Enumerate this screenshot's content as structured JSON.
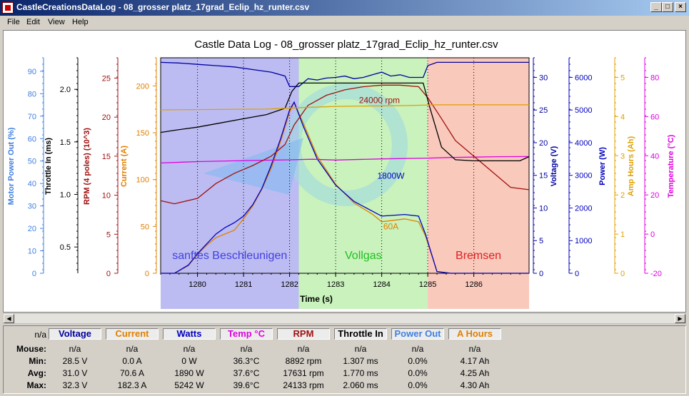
{
  "window": {
    "title": "CastleCreationsDataLog - 08_grosser platz_17grad_Eclip_hz_runter.csv"
  },
  "menu": [
    "File",
    "Edit",
    "View",
    "Help"
  ],
  "colors": {
    "voltage": "#0000a0",
    "current": "#e08000",
    "power": "#0000c0",
    "temp": "#e000e0",
    "rpm": "#a01010",
    "throttle": "#000000",
    "powerout": "#4080e0",
    "amphours": "#e0a000"
  },
  "chart_data": {
    "type": "line",
    "title": "Castle Data Log - 08_grosser platz_17grad_Eclip_hz_runter.csv",
    "xlabel": "Time (s)",
    "xlim": [
      1279.2,
      1287.2
    ],
    "xticks": [
      "1280",
      "1281",
      "1282",
      "1283",
      "1284",
      "1285",
      "1286"
    ],
    "axes": [
      {
        "label": "Motor Power Out (%)",
        "color": "#4080e0",
        "ticks": [
          "90",
          "80",
          "70",
          "60",
          "50",
          "40",
          "30",
          "20",
          "10",
          "0"
        ]
      },
      {
        "label": "Throttle In (ms)",
        "color": "#000000",
        "ticks": [
          "2.0",
          "1.5",
          "1.0",
          "0.5"
        ]
      },
      {
        "label": "RPM (4 poles) (10^3)",
        "color": "#a01010",
        "ticks": [
          "25",
          "20",
          "15",
          "10",
          "5",
          "0"
        ]
      },
      {
        "label": "Current (A)",
        "color": "#e08000",
        "ticks": [
          "200",
          "150",
          "100",
          "50",
          "0"
        ]
      },
      {
        "label": "Voltage (V)",
        "color": "#0000a0",
        "ticks": [
          "30",
          "25",
          "20",
          "15",
          "10",
          "5",
          "0"
        ]
      },
      {
        "label": "Power (W)",
        "color": "#0000c0",
        "ticks": [
          "6000",
          "5000",
          "4000",
          "3000",
          "2000",
          "1000",
          "0"
        ]
      },
      {
        "label": "Amp Hours (Ah)",
        "color": "#e0a000",
        "ticks": [
          "5",
          "4",
          "3",
          "2",
          "1",
          "0"
        ]
      },
      {
        "label": "Temperature (°C)",
        "color": "#e000e0",
        "ticks": [
          "80",
          "60",
          "40",
          "20",
          "0",
          "-20"
        ]
      }
    ],
    "regions": [
      {
        "label": "sanftes Beschleunigen",
        "from": 1279.2,
        "to": 1282.2,
        "color": "#b0b0f0",
        "text_color": "#4040e0"
      },
      {
        "label": "Vollgas",
        "from": 1282.2,
        "to": 1285.0,
        "color": "#c0f0b0",
        "text_color": "#20c020"
      },
      {
        "label": "Bremsen",
        "from": 1285.0,
        "to": 1287.2,
        "color": "#f8c0b0",
        "text_color": "#e02020"
      }
    ],
    "annotations": [
      {
        "text": "24000 rpm",
        "x": 1283.95,
        "y": 21.8,
        "axis": "rpm"
      },
      {
        "text": "1800W",
        "x": 1284.2,
        "y": 2900,
        "axis": "power"
      },
      {
        "text": "60A",
        "x": 1284.2,
        "y": 47,
        "axis": "current"
      }
    ],
    "series": [
      {
        "name": "Voltage",
        "axis": "voltage",
        "color": "#0000a0",
        "x": [
          1279.2,
          1279.6,
          1280.0,
          1280.4,
          1280.8,
          1281.2,
          1281.6,
          1281.9,
          1282.0,
          1282.2,
          1282.4,
          1282.6,
          1282.8,
          1283.0,
          1283.2,
          1283.4,
          1283.6,
          1283.8,
          1284.0,
          1284.2,
          1284.4,
          1284.6,
          1284.9,
          1285.0,
          1285.2,
          1285.6,
          1286.0,
          1286.5,
          1287.2
        ],
        "y": [
          32.3,
          32.2,
          32.0,
          31.8,
          31.6,
          31.2,
          30.8,
          30.2,
          28.6,
          28.6,
          29.8,
          29.6,
          29.9,
          30.0,
          30.2,
          29.8,
          30.0,
          30.4,
          30.8,
          30.2,
          30.4,
          30.0,
          30.0,
          31.8,
          32.3,
          32.3,
          32.3,
          32.3,
          32.3
        ]
      },
      {
        "name": "Current",
        "axis": "current",
        "color": "#e08000",
        "x": [
          1279.2,
          1279.5,
          1279.8,
          1280.0,
          1280.2,
          1280.4,
          1280.6,
          1280.8,
          1281.0,
          1281.2,
          1281.4,
          1281.6,
          1281.8,
          1282.0,
          1282.1,
          1282.3,
          1282.6,
          1283.0,
          1283.4,
          1283.8,
          1284.0,
          1284.5,
          1284.8,
          1284.95,
          1285.2,
          1285.5,
          1287.2
        ],
        "y": [
          0,
          0,
          8,
          20,
          30,
          38,
          42,
          46,
          58,
          72,
          90,
          112,
          140,
          172,
          182,
          160,
          125,
          95,
          75,
          63,
          55,
          58,
          55,
          40,
          2,
          0,
          0
        ]
      },
      {
        "name": "Power",
        "axis": "power",
        "color": "#0000c0",
        "x": [
          1279.2,
          1279.5,
          1279.8,
          1280.0,
          1280.2,
          1280.4,
          1280.6,
          1280.8,
          1281.0,
          1281.2,
          1281.4,
          1281.6,
          1281.8,
          1282.0,
          1282.1,
          1282.3,
          1282.6,
          1283.0,
          1283.4,
          1283.8,
          1284.0,
          1284.5,
          1284.8,
          1284.95,
          1285.2,
          1285.5,
          1287.2
        ],
        "y": [
          0,
          0,
          250,
          600,
          900,
          1200,
          1400,
          1550,
          1750,
          2100,
          2600,
          3300,
          4100,
          5000,
          5242,
          4500,
          3500,
          2700,
          2200,
          1900,
          1750,
          1800,
          1750,
          1200,
          50,
          0,
          0
        ]
      },
      {
        "name": "Temp",
        "axis": "temp",
        "color": "#e000e0",
        "x": [
          1279.2,
          1280.0,
          1281.0,
          1282.0,
          1282.5,
          1283.0,
          1284.0,
          1285.0,
          1285.5,
          1286.0,
          1286.5,
          1287.2
        ],
        "y": [
          36.3,
          37.0,
          37.5,
          37.9,
          38.2,
          37.8,
          38.4,
          38.8,
          39.1,
          39.3,
          39.5,
          39.6
        ]
      },
      {
        "name": "RPM",
        "axis": "rpm",
        "color": "#a01010",
        "x": [
          1279.2,
          1279.5,
          1280.0,
          1280.4,
          1280.8,
          1281.2,
          1281.6,
          1281.9,
          1282.1,
          1282.4,
          1282.8,
          1283.2,
          1283.6,
          1284.0,
          1284.4,
          1284.8,
          1285.0,
          1285.3,
          1285.6,
          1286.0,
          1286.4,
          1286.8,
          1287.2
        ],
        "y": [
          9.3,
          8.9,
          9.6,
          11.5,
          12.8,
          13.8,
          15.0,
          16.5,
          19.0,
          21.5,
          22.8,
          23.5,
          23.9,
          24.1,
          24.1,
          23.9,
          22.5,
          19.8,
          17.0,
          15.0,
          13.0,
          11.0,
          10.7
        ]
      },
      {
        "name": "Throttle In",
        "axis": "throttle",
        "color": "#000000",
        "x": [
          1279.2,
          1279.5,
          1280.0,
          1280.5,
          1281.0,
          1281.5,
          1281.9,
          1282.05,
          1282.2,
          1284.9,
          1285.05,
          1285.3,
          1285.6,
          1286.0,
          1286.5,
          1287.0,
          1287.2
        ],
        "y": [
          1.59,
          1.61,
          1.64,
          1.68,
          1.72,
          1.76,
          1.82,
          1.98,
          2.06,
          2.06,
          1.82,
          1.45,
          1.33,
          1.32,
          1.32,
          1.32,
          1.36
        ]
      },
      {
        "name": "Amp Hours",
        "axis": "amphours",
        "color": "#e0a000",
        "x": [
          1279.2,
          1281.5,
          1282.3,
          1283.0,
          1284.5,
          1285.2,
          1287.2
        ],
        "y": [
          4.17,
          4.19,
          4.23,
          4.26,
          4.28,
          4.3,
          4.3
        ]
      }
    ]
  },
  "stats": {
    "columns": [
      {
        "label": "Voltage",
        "color": "#0000a0"
      },
      {
        "label": "Current",
        "color": "#e08000"
      },
      {
        "label": "Watts",
        "color": "#0000c0"
      },
      {
        "label": "Temp °C",
        "color": "#e000e0"
      },
      {
        "label": "RPM",
        "color": "#a01010"
      },
      {
        "label": "Throttle In",
        "color": "#000000"
      },
      {
        "label": "Power Out",
        "color": "#4080e0"
      },
      {
        "label": "A Hours",
        "color": "#e08000"
      }
    ],
    "corner": "n/a",
    "rows": [
      {
        "label": "Mouse:",
        "values": [
          "n/a",
          "n/a",
          "n/a",
          "n/a",
          "n/a",
          "n/a",
          "n/a",
          "n/a"
        ]
      },
      {
        "label": "Min:",
        "values": [
          "28.5 V",
          "0.0 A",
          "0 W",
          "36.3°C",
          "8892 rpm",
          "1.307 ms",
          "0.0%",
          "4.17 Ah"
        ]
      },
      {
        "label": "Avg:",
        "values": [
          "31.0 V",
          "70.6 A",
          "1890 W",
          "37.6°C",
          "17631 rpm",
          "1.770 ms",
          "0.0%",
          "4.25 Ah"
        ]
      },
      {
        "label": "Max:",
        "values": [
          "32.3 V",
          "182.3 A",
          "5242 W",
          "39.6°C",
          "24133 rpm",
          "2.060 ms",
          "0.0%",
          "4.30 Ah"
        ]
      }
    ]
  }
}
